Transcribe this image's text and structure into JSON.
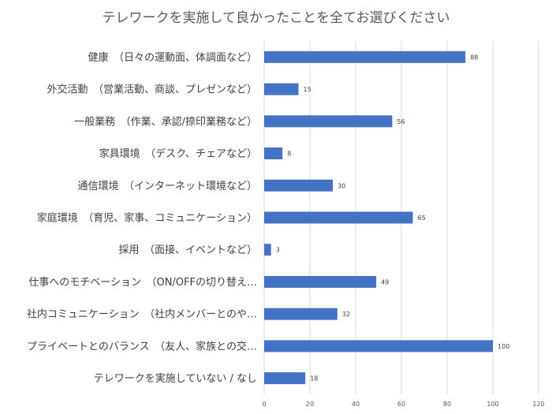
{
  "chart_data": {
    "type": "bar",
    "orientation": "horizontal",
    "title": "テレワークを実施して良かったことを全てお選びください",
    "categories": [
      "健康　（日々の運動面、体調面など）",
      "外交活動　（営業活動、商談、プレゼンなど）",
      "一般業務　（作業、承認/捺印業務など）",
      "家具環境　（デスク、チェアなど）",
      "通信環境　（インターネット環境など）",
      "家庭環境　（育児、家事、コミュニケーション）",
      "採用　（面接、イベントなど）",
      "仕事へのモチベーション　（ON/OFFの切り替え…",
      "社内コミュニケーション　（社内メンバーとのや…",
      "プライベートとのバランス　（友人、家族との交…",
      "テレワークを実施していない / なし"
    ],
    "values": [
      88,
      15,
      56,
      8,
      30,
      65,
      3,
      49,
      32,
      100,
      18
    ],
    "xlim": [
      0,
      120
    ],
    "xticks": [
      "0",
      "20",
      "40",
      "60",
      "80",
      "100",
      "120"
    ],
    "xlabel": "",
    "ylabel": "",
    "grid": true,
    "legend": "none",
    "bar_color": "#4472C4"
  }
}
